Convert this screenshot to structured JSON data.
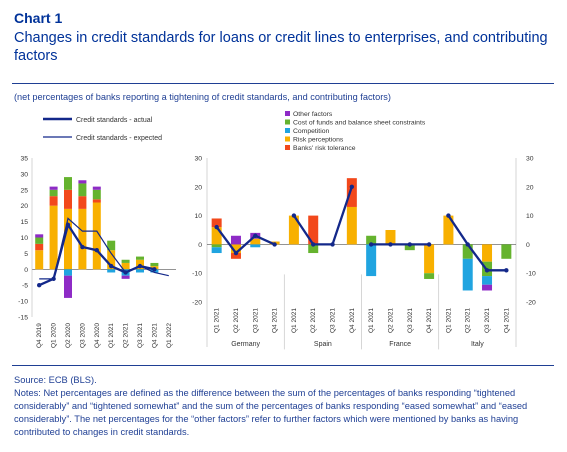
{
  "header": {
    "chart_number": "Chart 1",
    "title": "Changes in credit standards for loans or credit lines to enterprises, and contributing factors",
    "subtitle": "(net percentages of banks reporting a tightening of credit standards, and contributing factors)"
  },
  "footer": {
    "source": "Source: ECB (BLS).",
    "notes": "Notes: Net percentages are defined as the difference between the sum of the percentages of banks responding “tightened considerably” and “tightened somewhat” and the sum of the percentages of banks responding “eased somewhat” and “eased considerably”. The net percentages for the “other factors” refer to further factors which were mentioned by banks as having contributed to changes in credit standards."
  },
  "colors": {
    "other": "#8e2bc6",
    "cost": "#65b32e",
    "competition": "#20a4e0",
    "risk_perceptions": "#f8b000",
    "risk_tolerance": "#f2481b",
    "actual": "#13288a",
    "expected": "#13288a"
  },
  "chart_data": [
    {
      "type": "bar",
      "legend": [
        {
          "key": "actual",
          "label": "Credit standards - actual"
        },
        {
          "key": "expected",
          "label": "Credit standards - expected"
        }
      ],
      "stack_legend": [
        {
          "key": "other",
          "label": "Other factors"
        },
        {
          "key": "cost",
          "label": "Cost of funds and balance sheet constraints"
        },
        {
          "key": "competition",
          "label": "Competition"
        },
        {
          "key": "risk_perceptions",
          "label": "Risk perceptions"
        },
        {
          "key": "risk_tolerance",
          "label": "Banks' risk tolerance"
        }
      ],
      "ylim": [
        -15,
        35
      ],
      "yticks": [
        "35",
        "30",
        "25",
        "20",
        "15",
        "10",
        "5",
        "0",
        "-5",
        "-10",
        "-15"
      ],
      "categories": [
        "Q4 2019",
        "Q1 2020",
        "Q2 2020",
        "Q3 2020",
        "Q4 2020",
        "Q1 2021",
        "Q2 2021",
        "Q3 2021",
        "Q4 2021",
        "Q1 2022"
      ],
      "bar_categories": 9,
      "stack_series": [
        {
          "key": "risk_perceptions",
          "values": [
            6,
            20,
            19,
            19,
            21,
            6,
            2,
            3,
            1
          ]
        },
        {
          "key": "risk_tolerance",
          "values": [
            2,
            3,
            6,
            4,
            1,
            0,
            0,
            0,
            0
          ]
        },
        {
          "key": "cost",
          "values": [
            2,
            2,
            4,
            4,
            3,
            3,
            1,
            1,
            1
          ]
        },
        {
          "key": "competition",
          "values": [
            0,
            0,
            -2,
            0,
            0,
            -1,
            -2,
            -1,
            -1
          ]
        },
        {
          "key": "other",
          "values": [
            1,
            1,
            -7,
            1,
            1,
            0,
            -1,
            0,
            0
          ]
        }
      ],
      "actual": [
        -5,
        -3,
        14,
        7,
        6,
        1,
        -1,
        1,
        0
      ],
      "expected": [
        -3,
        -3,
        16,
        12,
        12,
        5,
        -1,
        1,
        -1,
        -2
      ]
    },
    {
      "type": "bar",
      "ylim": [
        -20,
        30
      ],
      "yticks": [
        "30",
        "20",
        "10",
        "0",
        "-10",
        "-20"
      ],
      "groups": [
        {
          "name": "Germany",
          "categories": [
            "Q1 2021",
            "Q2 2021",
            "Q3 2021",
            "Q4 2021"
          ],
          "stack_series": [
            {
              "key": "risk_perceptions",
              "values": [
                6,
                -3,
                2,
                1
              ]
            },
            {
              "key": "risk_tolerance",
              "values": [
                3,
                -2,
                0,
                0
              ]
            },
            {
              "key": "cost",
              "values": [
                -1,
                0,
                0,
                0
              ]
            },
            {
              "key": "competition",
              "values": [
                -2,
                0,
                -1,
                0
              ]
            },
            {
              "key": "other",
              "values": [
                0,
                3,
                2,
                0
              ]
            }
          ],
          "actual": [
            6,
            -3,
            3,
            0
          ]
        },
        {
          "name": "Spain",
          "categories": [
            "Q1 2021",
            "Q2 2021",
            "Q3 2021",
            "Q4 2021"
          ],
          "stack_series": [
            {
              "key": "risk_perceptions",
              "values": [
                10,
                0,
                0,
                13
              ]
            },
            {
              "key": "risk_tolerance",
              "values": [
                0,
                10,
                0,
                10
              ]
            },
            {
              "key": "cost",
              "values": [
                0,
                -3,
                0,
                0
              ]
            },
            {
              "key": "competition",
              "values": [
                0,
                0,
                0,
                0
              ]
            },
            {
              "key": "other",
              "values": [
                0,
                0,
                0,
                0
              ]
            }
          ],
          "actual": [
            10,
            0,
            0,
            20
          ]
        },
        {
          "name": "France",
          "categories": [
            "Q1 2021",
            "Q2 2021",
            "Q3 2021",
            "Q4 2021"
          ],
          "stack_series": [
            {
              "key": "risk_perceptions",
              "values": [
                0,
                5,
                0,
                -10
              ]
            },
            {
              "key": "risk_tolerance",
              "values": [
                0,
                0,
                0,
                0
              ]
            },
            {
              "key": "cost",
              "values": [
                3,
                0,
                -2,
                -2
              ]
            },
            {
              "key": "competition",
              "values": [
                -11,
                0,
                0,
                0
              ]
            },
            {
              "key": "other",
              "values": [
                0,
                0,
                0,
                0
              ]
            }
          ],
          "actual": [
            0,
            0,
            0,
            0
          ]
        },
        {
          "name": "Italy",
          "categories": [
            "Q1 2021",
            "Q2 2021",
            "Q3 2021",
            "Q4 2021"
          ],
          "stack_series": [
            {
              "key": "risk_perceptions",
              "values": [
                10,
                0,
                -6,
                0
              ]
            },
            {
              "key": "risk_tolerance",
              "values": [
                0,
                0,
                0,
                0
              ]
            },
            {
              "key": "cost",
              "values": [
                0,
                -5,
                -5,
                -5
              ]
            },
            {
              "key": "competition",
              "values": [
                0,
                -11,
                -3,
                0
              ]
            },
            {
              "key": "other",
              "values": [
                0,
                0,
                -2,
                0
              ]
            }
          ],
          "actual": [
            10,
            0,
            -9,
            -9
          ]
        }
      ]
    }
  ]
}
